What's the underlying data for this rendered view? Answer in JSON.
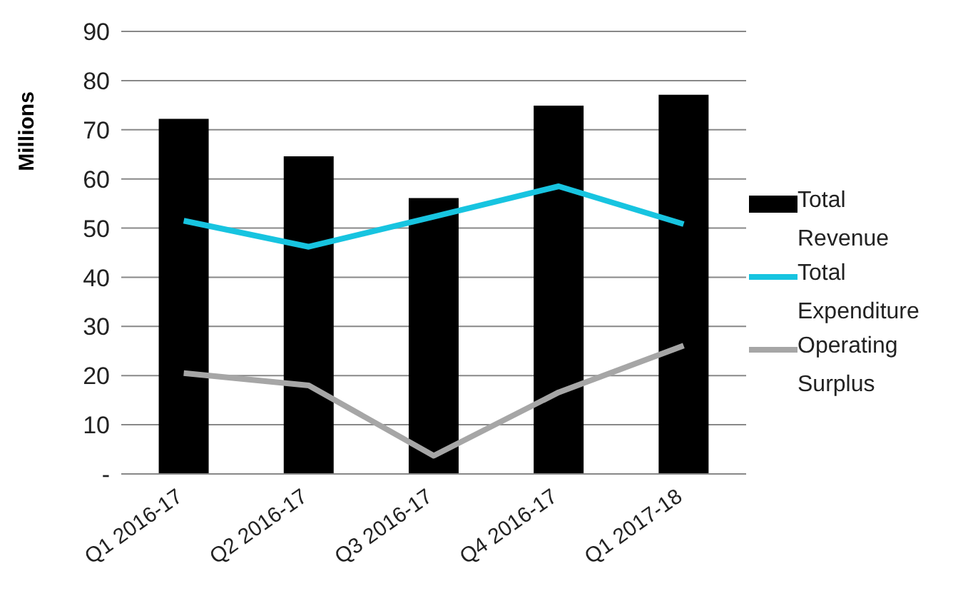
{
  "chart_data": {
    "type": "bar",
    "ylabel": "Millions",
    "categories": [
      "Q1 2016-17",
      "Q2 2016-17",
      "Q3 2016-17",
      "Q4 2016-17",
      "Q1 2017-18"
    ],
    "series": [
      {
        "name": "Total Revenue",
        "color": "#000000",
        "values": [
          72.2,
          64.6,
          56.1,
          74.9,
          77.1
        ]
      },
      {
        "name": "Total Expenditure",
        "type": "line",
        "color": "#17c4e0",
        "values": [
          51.5,
          46.2,
          52.3,
          58.5,
          50.8
        ]
      },
      {
        "name": "Operating Surplus",
        "type": "line",
        "color": "#a6a6a6",
        "values": [
          20.5,
          18.0,
          3.7,
          16.6,
          26.1
        ]
      }
    ],
    "ylim": [
      0,
      90
    ],
    "yticks": [
      {
        "value": 0,
        "label": "-"
      },
      10,
      20,
      30,
      40,
      50,
      60,
      70,
      80,
      90
    ],
    "grid": "y",
    "legend": "right",
    "marker": "none"
  }
}
